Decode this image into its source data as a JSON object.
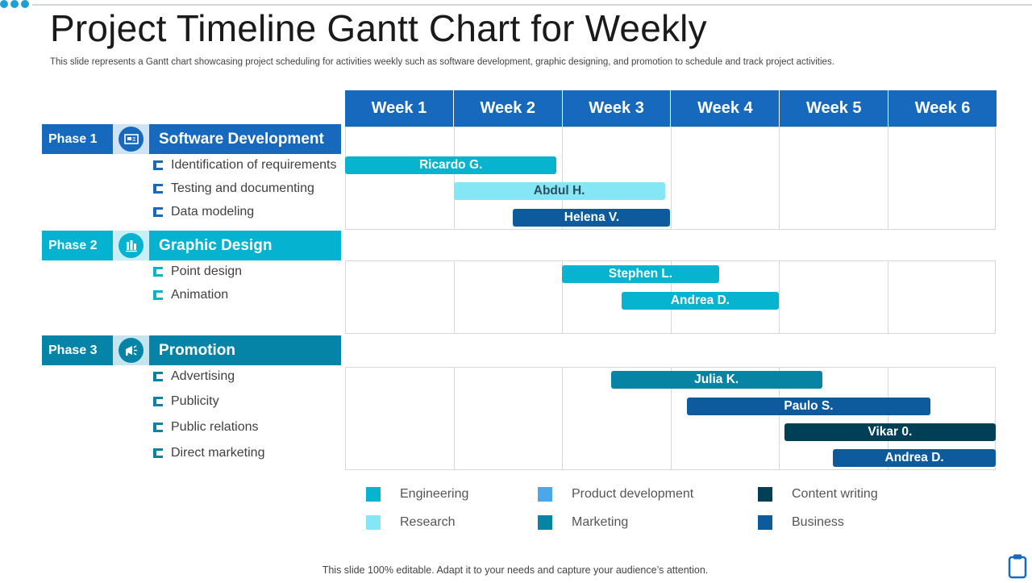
{
  "title": "Project Timeline Gantt Chart for Weekly",
  "subtitle": "This slide represents a Gantt chart showcasing project scheduling for activities weekly such as software development, graphic designing, and promotion to schedule and track project activities.",
  "footer": "This slide 100% editable. Adapt it to your needs and capture your audience’s attention.",
  "colors": {
    "header_blue": "#1769bd",
    "phase1": "#1769bd",
    "phase2": "#05b2cf",
    "phase3": "#0684a8",
    "Engineering": "#07b4cf",
    "Research": "#85e6f6",
    "Product development": "#4ca7ea",
    "Marketing": "#0783a3",
    "Content writing": "#003f55",
    "Business": "#0d5a9c"
  },
  "phases": [
    {
      "label": "Phase 1",
      "name": "Software Development",
      "icon": "monitor-icon",
      "tasks": [
        "Identification of requirements",
        "Testing and documenting",
        "Data modeling"
      ]
    },
    {
      "label": "Phase 2",
      "name": "Graphic Design",
      "icon": "design-tools-icon",
      "tasks": [
        "Point design",
        "Animation"
      ]
    },
    {
      "label": "Phase 3",
      "name": "Promotion",
      "icon": "megaphone-icon",
      "tasks": [
        "Advertising",
        "Publicity",
        "Public relations",
        "Direct marketing"
      ]
    }
  ],
  "chart_data": {
    "type": "gantt",
    "title": "Project Timeline Gantt Chart for Weekly",
    "x_categories": [
      "Week 1",
      "Week 2",
      "Week 3",
      "Week 4",
      "Week 5",
      "Week 6"
    ],
    "tasks": [
      {
        "phase": "Phase 1",
        "task": "Identification of requirements",
        "assignee": "Ricardo G.",
        "start": 0.0,
        "end": 1.95,
        "category": "Engineering"
      },
      {
        "phase": "Phase 1",
        "task": "Testing and documenting",
        "assignee": "Abdul H.",
        "start": 1.0,
        "end": 2.95,
        "category": "Research"
      },
      {
        "phase": "Phase 1",
        "task": "Data modeling",
        "assignee": "Helena V.",
        "start": 1.55,
        "end": 3.0,
        "category": "Business"
      },
      {
        "phase": "Phase 2",
        "task": "Point design",
        "assignee": "Stephen L.",
        "start": 2.0,
        "end": 3.45,
        "category": "Engineering"
      },
      {
        "phase": "Phase 2",
        "task": "Animation",
        "assignee": "Andrea D.",
        "start": 2.55,
        "end": 4.0,
        "category": "Engineering"
      },
      {
        "phase": "Phase 3",
        "task": "Advertising",
        "assignee": "Julia K.",
        "start": 2.45,
        "end": 4.4,
        "category": "Marketing"
      },
      {
        "phase": "Phase 3",
        "task": "Publicity",
        "assignee": "Paulo S.",
        "start": 3.15,
        "end": 5.4,
        "category": "Business"
      },
      {
        "phase": "Phase 3",
        "task": "Public relations",
        "assignee": "Vikar 0.",
        "start": 4.05,
        "end": 6.0,
        "category": "Content writing"
      },
      {
        "phase": "Phase 3",
        "task": "Direct marketing",
        "assignee": "Andrea D.",
        "start": 4.5,
        "end": 6.0,
        "category": "Business"
      }
    ],
    "legend": [
      "Engineering",
      "Product development",
      "Content writing",
      "Research",
      "Marketing",
      "Business"
    ]
  }
}
